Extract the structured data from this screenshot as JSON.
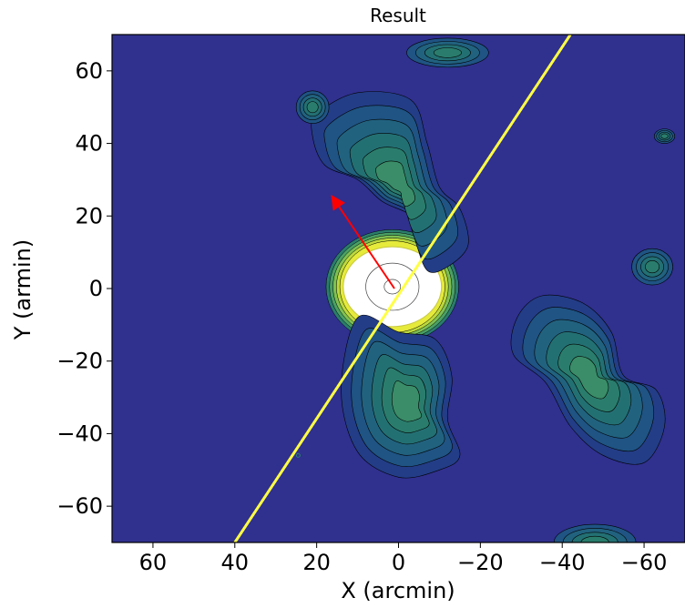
{
  "chart_data": {
    "type": "contour",
    "title": "Result",
    "xlabel": "X (arcmin)",
    "ylabel": "Y (armin)",
    "xlim": [
      70,
      -70
    ],
    "ylim": [
      -70,
      70
    ],
    "x_axis_inverted": true,
    "xticks": [
      60,
      40,
      20,
      0,
      -20,
      -40,
      -60
    ],
    "xtick_labels": [
      "60",
      "40",
      "20",
      "0",
      "−20",
      "−40",
      "−60"
    ],
    "yticks": [
      60,
      40,
      20,
      0,
      -20,
      -40,
      -60
    ],
    "ytick_labels": [
      "60",
      "40",
      "20",
      "0",
      "−20",
      "−40",
      "−60"
    ],
    "grid": false,
    "colormap": "viridis-like",
    "background_color": "#30308f",
    "contour_line_color": "#000000",
    "features": [
      {
        "name": "central-peak",
        "cx": 1.5,
        "cy": 0.5,
        "rx": 12,
        "ry": 11,
        "color": "#ffffff",
        "inner_levels": [
          {
            "rx": 6.5,
            "ry": 6.5
          },
          {
            "rx": 2,
            "ry": 2
          }
        ]
      },
      {
        "name": "northern-arm",
        "points": [
          [
            20,
            48
          ],
          [
            10,
            54
          ],
          [
            -3,
            52
          ],
          [
            -7,
            40
          ],
          [
            -10,
            28
          ],
          [
            -15,
            22
          ],
          [
            -17,
            12
          ],
          [
            -12,
            6
          ],
          [
            -7,
            5
          ],
          [
            -4,
            14
          ],
          [
            -3,
            20
          ],
          [
            4,
            24
          ],
          [
            10,
            30
          ],
          [
            18,
            34
          ],
          [
            21,
            42
          ]
        ]
      },
      {
        "name": "southern-arm",
        "points": [
          [
            10,
            -8
          ],
          [
            0,
            -12
          ],
          [
            -9,
            -14
          ],
          [
            -13,
            -24
          ],
          [
            -12,
            -36
          ],
          [
            -15,
            -46
          ],
          [
            -10,
            -50
          ],
          [
            0,
            -52
          ],
          [
            10,
            -45
          ],
          [
            14,
            -28
          ]
        ]
      },
      {
        "name": "top-blob",
        "cx": -12,
        "cy": 65,
        "rx": 10,
        "ry": 4
      },
      {
        "name": "left-blob",
        "cx": 21,
        "cy": 50,
        "rx": 4,
        "ry": 4.5
      },
      {
        "name": "right-small-blob",
        "cx": -65,
        "cy": 42,
        "rx": 2.5,
        "ry": 2
      },
      {
        "name": "right-mid-blob",
        "cx": -62,
        "cy": 6,
        "rx": 5,
        "ry": 5
      },
      {
        "name": "southeast-structure",
        "points": [
          [
            -29,
            -8
          ],
          [
            -35,
            -2
          ],
          [
            -45,
            -4
          ],
          [
            -52,
            -12
          ],
          [
            -55,
            -24
          ],
          [
            -63,
            -28
          ],
          [
            -65,
            -38
          ],
          [
            -60,
            -48
          ],
          [
            -50,
            -46
          ],
          [
            -42,
            -38
          ],
          [
            -36,
            -26
          ],
          [
            -28,
            -18
          ]
        ]
      },
      {
        "name": "bottom-blob",
        "cx": -48,
        "cy": -70,
        "rx": 10,
        "ry": 5
      }
    ],
    "annotations": {
      "yellow_line": {
        "from": [
          40,
          -70
        ],
        "to": [
          -42,
          70
        ],
        "color": "#ffff44"
      },
      "red_arrow": {
        "from": [
          1,
          0
        ],
        "to": [
          16,
          25
        ],
        "color": "#ff0000"
      },
      "small_marker": {
        "x": 24.5,
        "y": -46
      }
    }
  }
}
